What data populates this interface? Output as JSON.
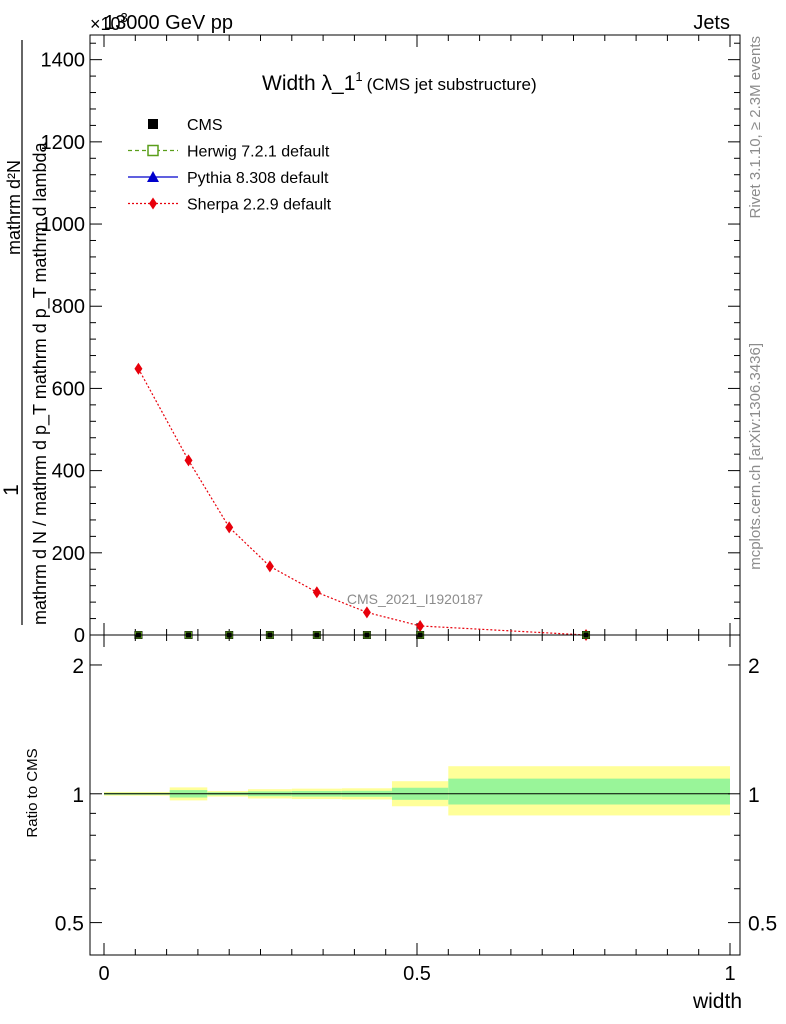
{
  "header": {
    "left": "13000 GeV pp",
    "right": "Jets",
    "exponent": "×10",
    "exponent_sup": "3"
  },
  "side_labels": {
    "rivet": "Rivet 3.1.10, ≥ 2.3M events",
    "mcplots": "mcplots.cern.ch [arXiv:1306.3436]"
  },
  "chart_data": [
    {
      "type": "line",
      "title": "Width λ_1",
      "title_sup": "1",
      "subtitle": "(CMS jet substructure)",
      "analysis_tag": "CMS_2021_I1920187",
      "ylabel_num": "1",
      "ylabel_den": "mathrm d N / mathrm d p_T mathrm d p_T mathrm d lambda",
      "ylabel_mid": "mathrm d²N",
      "ylabel_top": "mathrm d N",
      "xlim": [
        -0.02,
        1.0
      ],
      "ylim": [
        0,
        1460
      ],
      "yticks": [
        0,
        200,
        400,
        600,
        800,
        1000,
        1200,
        1400
      ],
      "ytick_labels": [
        "0",
        "200",
        "400",
        "600",
        "800",
        "1000",
        "1200",
        "1400"
      ],
      "legend_position": "top-left",
      "legend": [
        {
          "name": "CMS",
          "color": "#000000",
          "marker": "square-filled",
          "line": "none"
        },
        {
          "name": "Herwig 7.2.1 default",
          "color": "#5a9e1a",
          "marker": "square-open",
          "line": "dashed"
        },
        {
          "name": "Pythia 8.308 default",
          "color": "#0000cc",
          "marker": "triangle",
          "line": "solid"
        },
        {
          "name": "Sherpa 2.2.9 default",
          "color": "#e8000b",
          "marker": "diamond",
          "line": "dotted"
        }
      ],
      "cms_x": [
        0.055,
        0.135,
        0.2,
        0.265,
        0.34,
        0.42,
        0.505,
        0.77
      ],
      "cms_y": [
        0,
        0,
        0,
        0,
        0,
        0,
        0,
        0
      ],
      "sherpa": {
        "x": [
          0.055,
          0.135,
          0.2,
          0.265,
          0.34,
          0.42,
          0.505,
          0.77
        ],
        "y": [
          648,
          425,
          262,
          167,
          104,
          55,
          22,
          0
        ]
      }
    },
    {
      "type": "area",
      "ylabel": "Ratio to CMS",
      "xlabel": "width",
      "log_y": true,
      "ylim": [
        0.42,
        2.35
      ],
      "yticks": [
        0.5,
        1,
        2
      ],
      "ytick_labels": [
        "0.5",
        "1",
        "2"
      ],
      "xticks": [
        0,
        0.5,
        1
      ],
      "xtick_labels": [
        "0",
        "0.5",
        "1"
      ],
      "bands": [
        {
          "x0": 0.0,
          "x1": 0.105,
          "outer": [
            0.99,
            1.01
          ],
          "inner": [
            0.995,
            1.005
          ]
        },
        {
          "x0": 0.105,
          "x1": 0.165,
          "outer": [
            0.965,
            1.035
          ],
          "inner": [
            0.98,
            1.02
          ]
        },
        {
          "x0": 0.165,
          "x1": 0.23,
          "outer": [
            0.985,
            1.015
          ],
          "inner": [
            0.992,
            1.008
          ]
        },
        {
          "x0": 0.23,
          "x1": 0.3,
          "outer": [
            0.975,
            1.025
          ],
          "inner": [
            0.987,
            1.013
          ]
        },
        {
          "x0": 0.3,
          "x1": 0.38,
          "outer": [
            0.972,
            1.028
          ],
          "inner": [
            0.985,
            1.015
          ]
        },
        {
          "x0": 0.38,
          "x1": 0.46,
          "outer": [
            0.97,
            1.03
          ],
          "inner": [
            0.984,
            1.016
          ]
        },
        {
          "x0": 0.46,
          "x1": 0.55,
          "outer": [
            0.935,
            1.07
          ],
          "inner": [
            0.968,
            1.033
          ]
        },
        {
          "x0": 0.55,
          "x1": 1.0,
          "outer": [
            0.89,
            1.16
          ],
          "inner": [
            0.944,
            1.085
          ]
        }
      ]
    }
  ]
}
